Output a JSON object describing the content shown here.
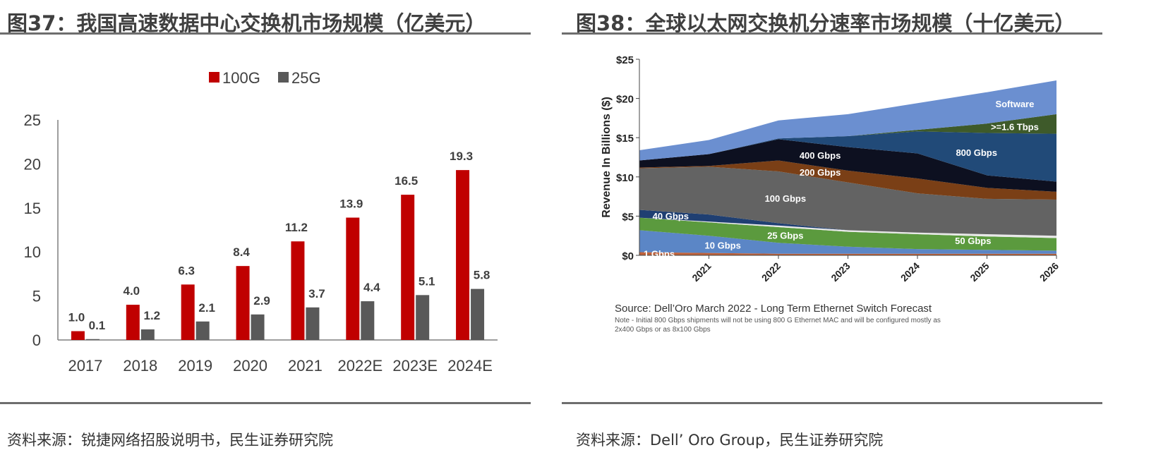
{
  "figure37": {
    "title": "图37：我国高速数据中心交换机市场规模（亿美元）",
    "source": "资料来源：锐捷网络招股说明书，民生证券研究院"
  },
  "figure38": {
    "title": "图38：全球以太网交换机分速率市场规模（十亿美元）",
    "source": "资料来源：Dell’ Oro Group，民生证券研究院",
    "chart_source_line": "Source: Dell’Oro March 2022 - Long Term Ethernet Switch Forecast",
    "chart_note_line1": "Note - Initial 800 Gbps shipments will not be using 800 G Ethernet MAC and will be configured mostly as",
    "chart_note_line2": "2x400 Gbps or as 8x100 Gbps"
  },
  "colors": {
    "100G": "#c00000",
    "25G": "#595959",
    "1 Gbps": "#c0623a",
    "10 Gbps": "#5b86c6",
    "25 Gbps": "#5b9a3e",
    "50 Gbps": "#e8e8e8",
    "40 Gbps": "#1f3f72",
    "100 Gbps": "#636363",
    "200 Gbps": "#7a3f16",
    "400 Gbps": "#0d1020",
    "800 Gbps": "#214a78",
    ">=1.6 Tbps": "#3e5a2a",
    "Software": "#6b8fd0"
  },
  "chart_data": [
    {
      "type": "bar",
      "categories": [
        "2017",
        "2018",
        "2019",
        "2020",
        "2021",
        "2022E",
        "2023E",
        "2024E"
      ],
      "series": [
        {
          "name": "100G",
          "values": [
            1.0,
            4.0,
            6.3,
            8.4,
            11.2,
            13.9,
            16.5,
            19.3
          ],
          "labels": [
            "1.0",
            "4.0",
            "6.3",
            "8.4",
            "11.2",
            "13.9",
            "16.5",
            "19.3"
          ]
        },
        {
          "name": "25G",
          "values": [
            0.1,
            1.2,
            2.1,
            2.9,
            3.7,
            4.4,
            5.1,
            5.8
          ],
          "labels": [
            "0.1",
            "1.2",
            "2.1",
            "2.9",
            "3.7",
            "4.4",
            "5.1",
            "5.8"
          ]
        }
      ],
      "ylim": [
        0,
        25
      ],
      "yticks": [
        0,
        5,
        10,
        15,
        20,
        25
      ],
      "legend": "top-center",
      "grid": false
    },
    {
      "type": "area",
      "x": [
        "2020",
        "2021",
        "2022",
        "2023",
        "2024",
        "2025",
        "2026"
      ],
      "xticks": [
        "2021",
        "2022",
        "2023",
        "2024",
        "2025",
        "2026"
      ],
      "ylabel": "Revenue In Billions ($)",
      "ylim": [
        0,
        25
      ],
      "yticks": [
        "$0",
        "$5",
        "$10",
        "$15",
        "$20",
        "$25"
      ],
      "stacked": true,
      "grid": false,
      "series": [
        {
          "name": "1 Gbps",
          "values": [
            0.4,
            0.3,
            0.2,
            0.2,
            0.2,
            0.2,
            0.2
          ]
        },
        {
          "name": "10 Gbps",
          "values": [
            2.8,
            2.2,
            1.4,
            0.9,
            0.6,
            0.5,
            0.4
          ]
        },
        {
          "name": "25 Gbps",
          "values": [
            1.6,
            1.7,
            2.0,
            1.9,
            1.9,
            1.7,
            1.6
          ]
        },
        {
          "name": "50 Gbps",
          "values": [
            0.0,
            0.1,
            0.2,
            0.2,
            0.2,
            0.3,
            0.3
          ]
        },
        {
          "name": "40 Gbps",
          "values": [
            1.0,
            0.9,
            0.3,
            0.0,
            0.0,
            0.0,
            0.0
          ]
        },
        {
          "name": "100 Gbps",
          "values": [
            5.3,
            6.1,
            6.6,
            6.1,
            5.0,
            4.5,
            4.6
          ]
        },
        {
          "name": "200 Gbps",
          "values": [
            0.1,
            0.1,
            1.4,
            1.5,
            1.9,
            1.4,
            1.0
          ]
        },
        {
          "name": "400 Gbps",
          "values": [
            0.9,
            1.5,
            2.7,
            3.0,
            3.2,
            1.6,
            1.3
          ]
        },
        {
          "name": "800 Gbps",
          "values": [
            0.0,
            0.0,
            0.1,
            1.4,
            2.8,
            5.4,
            6.1
          ]
        },
        {
          "name": ">=1.6 Tbps",
          "values": [
            0.0,
            0.0,
            0.0,
            0.0,
            0.2,
            1.2,
            2.5
          ]
        },
        {
          "name": "Software",
          "values": [
            1.3,
            1.8,
            2.3,
            2.8,
            3.4,
            4.0,
            4.3
          ]
        }
      ]
    }
  ]
}
